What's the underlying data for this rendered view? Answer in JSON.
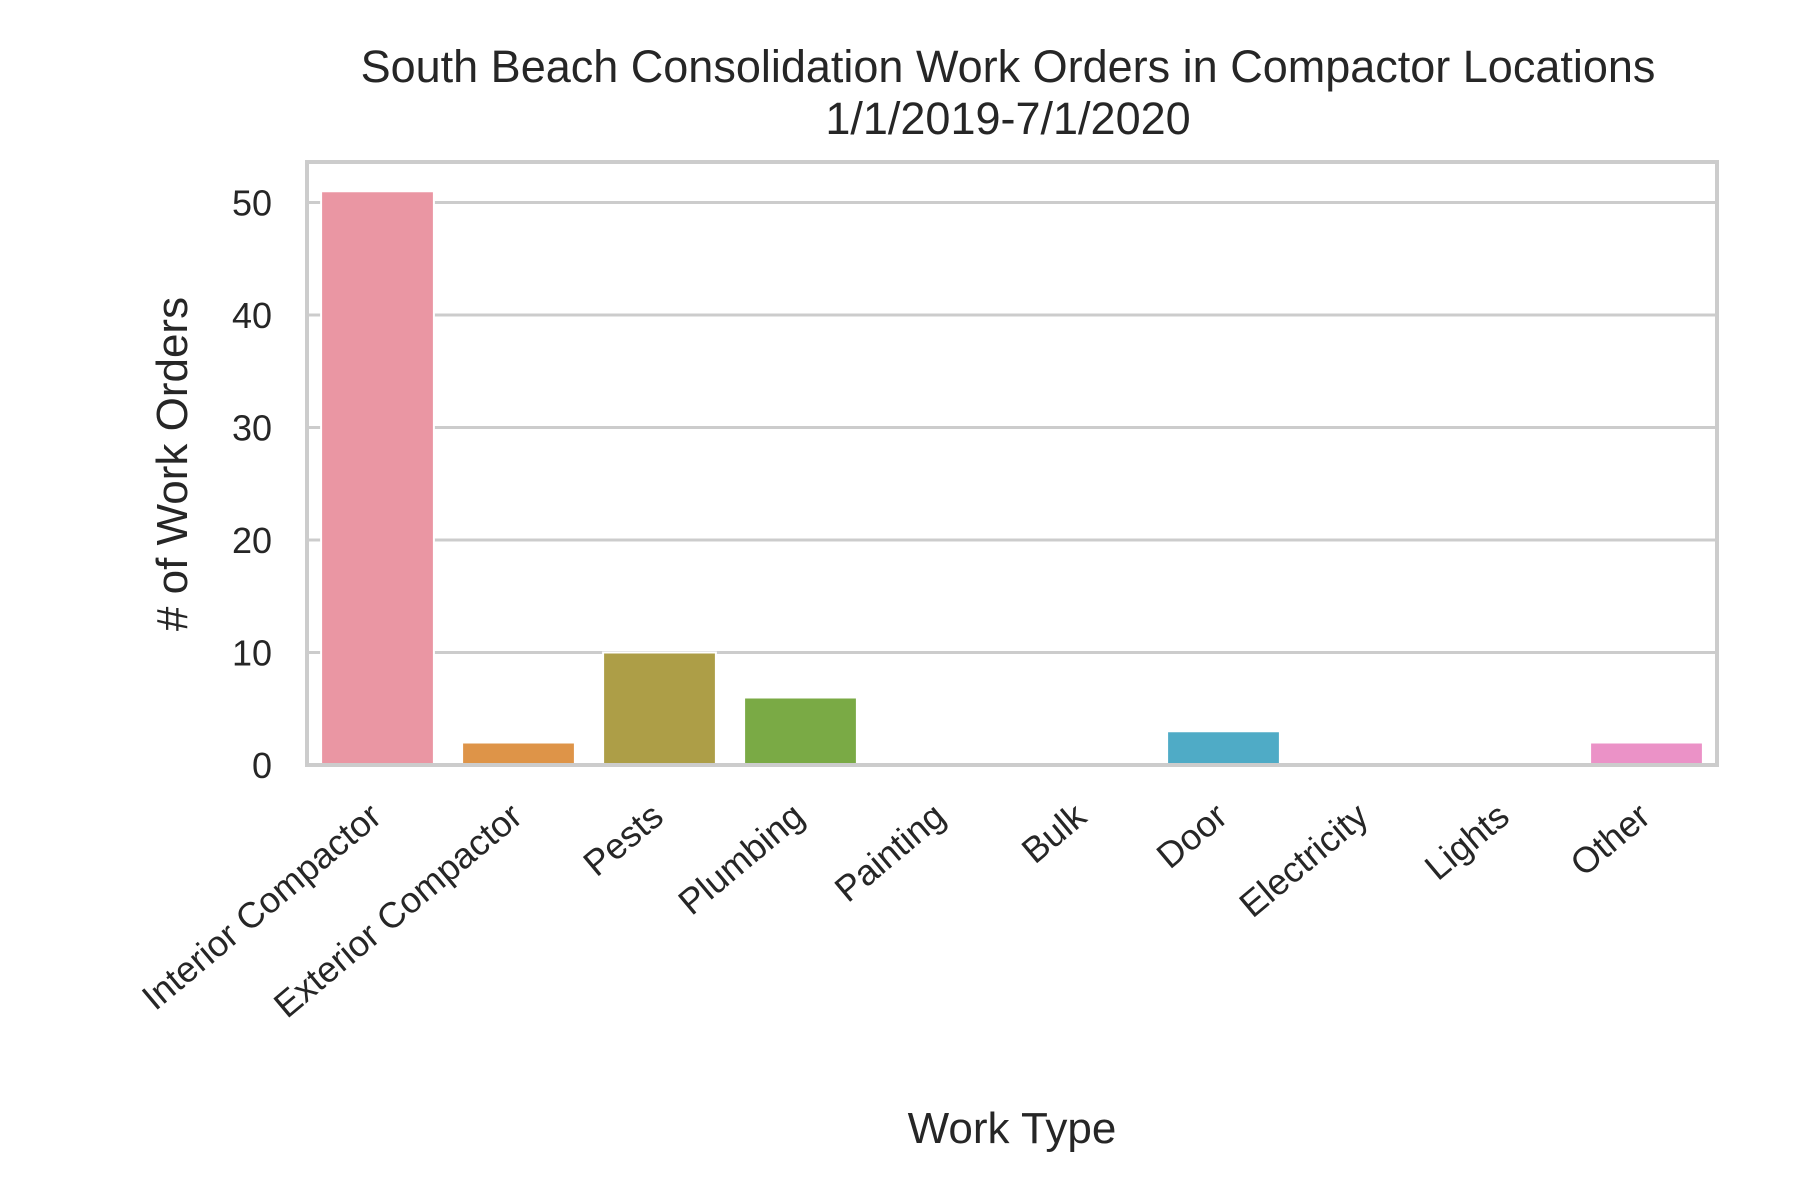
{
  "chart_data": {
    "type": "bar",
    "title": "South Beach Consolidation Work Orders in Compactor Locations",
    "subtitle": "1/1/2019-7/1/2020",
    "xlabel": "Work Type",
    "ylabel": "# of Work Orders",
    "categories": [
      "Interior Compactor",
      "Exterior Compactor",
      "Pests",
      "Plumbing",
      "Painting",
      "Bulk",
      "Door",
      "Electricity",
      "Lights",
      "Other"
    ],
    "values": [
      51,
      2,
      10,
      6,
      0,
      0,
      3,
      0,
      0,
      2
    ],
    "colors": [
      "#ea96a3",
      "#de9448",
      "#ad9e47",
      "#7aaa45",
      "#48ac7e",
      "#4aaa9a",
      "#4fabc6",
      "#a6a5e9",
      "#e08ce8",
      "#eb92c7"
    ],
    "ylim": [
      0,
      53.6
    ],
    "yticks": [
      0,
      10,
      20,
      30,
      40,
      50
    ],
    "grid": true,
    "legend": "none"
  }
}
